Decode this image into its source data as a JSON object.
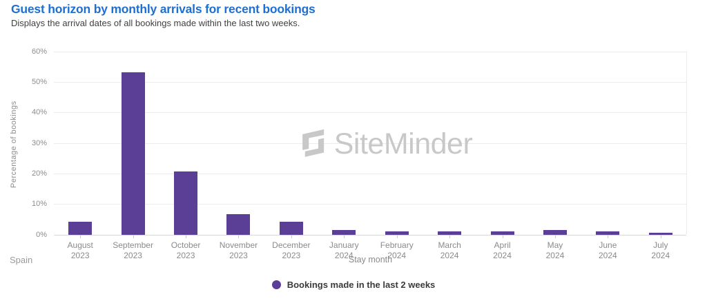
{
  "header": {
    "title": "Guest horizon by monthly arrivals for recent bookings",
    "subtitle": "Displays the arrival dates of all bookings made within the last two weeks."
  },
  "watermark": {
    "brand": "SiteMinder"
  },
  "footer": {
    "region_label": "Spain"
  },
  "colors": {
    "title_blue": "#1e6fd2",
    "bar_purple": "#5b3e96",
    "watermark_gray": "#c8c8c8"
  },
  "chart_data": {
    "type": "bar",
    "title": "Guest horizon by monthly arrivals for recent bookings",
    "categories": [
      "August 2023",
      "September 2023",
      "October 2023",
      "November 2023",
      "December 2023",
      "January 2024",
      "February 2024",
      "March 2024",
      "April 2024",
      "May 2024",
      "June 2024",
      "July 2024"
    ],
    "values": [
      4.3,
      53.2,
      20.8,
      6.8,
      4.4,
      1.5,
      1.1,
      1.2,
      1.2,
      1.6,
      1.2,
      0.7
    ],
    "series_name": "Bookings made in the last 2 weeks",
    "xlabel": "Stay month",
    "ylabel": "Percentage of bookings",
    "ylim": [
      0,
      60
    ],
    "yticks": [
      0,
      10,
      20,
      30,
      40,
      50,
      60
    ],
    "ytick_suffix": "%",
    "bar_color": "#5b3e96",
    "grid": true,
    "legend_position": "bottom"
  }
}
